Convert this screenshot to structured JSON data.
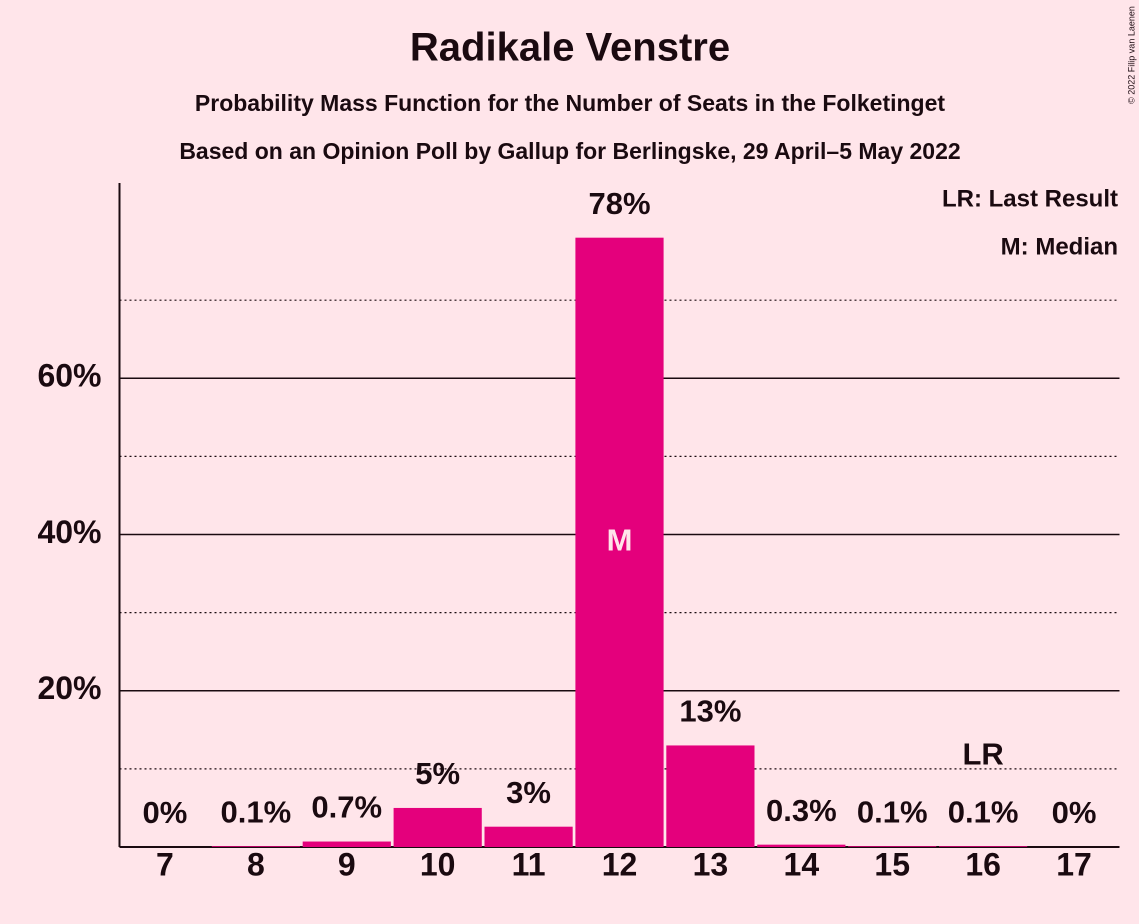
{
  "chart_data": {
    "type": "bar",
    "title": "Radikale Venstre",
    "subtitle": "Probability Mass Function for the Number of Seats in the Folketinget",
    "subtitle2": "Based on an Opinion Poll by Gallup for Berlingske, 29 April–5 May 2022",
    "categories": [
      "7",
      "8",
      "9",
      "10",
      "11",
      "12",
      "13",
      "14",
      "15",
      "16",
      "17"
    ],
    "values": [
      0,
      0.1,
      0.7,
      5,
      2.6,
      78,
      13,
      0.3,
      0.1,
      0.1,
      0
    ],
    "value_labels": [
      "0%",
      "0.1%",
      "0.7%",
      "5%",
      "3%",
      "78%",
      "13%",
      "0.3%",
      "0.1%",
      "0.1%",
      "0%"
    ],
    "color": "#e4007c",
    "ylim": [
      0,
      85
    ],
    "yticks": [
      {
        "value": 20,
        "label": "20%"
      },
      {
        "value": 40,
        "label": "40%"
      },
      {
        "value": 60,
        "label": "60%"
      }
    ],
    "minor_grid": [
      10,
      30,
      50,
      70
    ],
    "grid": true,
    "annotations": [
      {
        "text": "M",
        "category": "12",
        "position": "inside"
      },
      {
        "text": "LR",
        "category": "16",
        "position": "above"
      }
    ],
    "legend": [
      "LR: Last Result",
      "M: Median"
    ],
    "copyright": "© 2022 Filip van Laenen"
  }
}
